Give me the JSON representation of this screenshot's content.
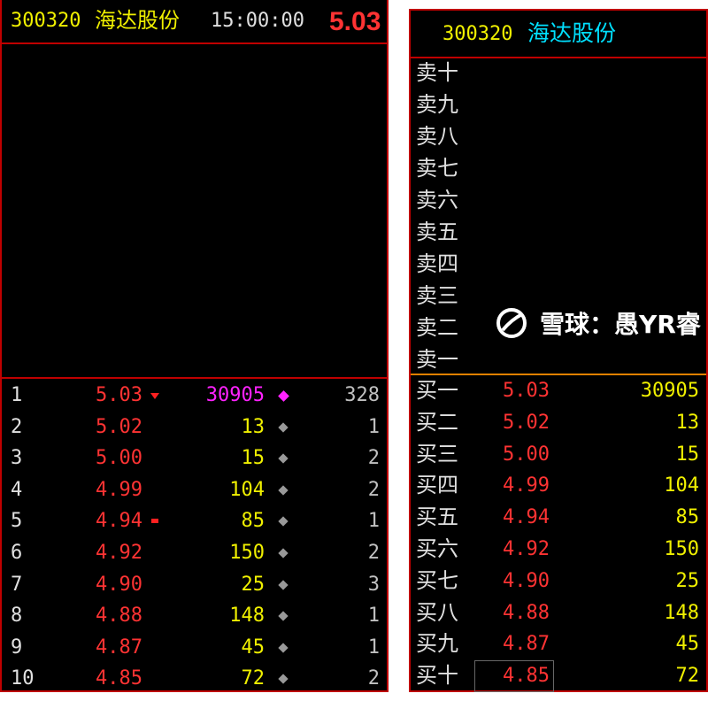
{
  "left": {
    "code": "300320",
    "name": "海达股份",
    "time": "15:00:00",
    "price": "5.03",
    "rows": [
      {
        "n": "1",
        "price": "5.03",
        "vol": "30905",
        "count": "328",
        "marker": "down-flag",
        "highlight": true
      },
      {
        "n": "2",
        "price": "5.02",
        "vol": "13",
        "count": "1"
      },
      {
        "n": "3",
        "price": "5.00",
        "vol": "15",
        "count": "2"
      },
      {
        "n": "4",
        "price": "4.99",
        "vol": "104",
        "count": "2"
      },
      {
        "n": "5",
        "price": "4.94",
        "vol": "85",
        "count": "1",
        "marker": "square"
      },
      {
        "n": "6",
        "price": "4.92",
        "vol": "150",
        "count": "2"
      },
      {
        "n": "7",
        "price": "4.90",
        "vol": "25",
        "count": "3"
      },
      {
        "n": "8",
        "price": "4.88",
        "vol": "148",
        "count": "1"
      },
      {
        "n": "9",
        "price": "4.87",
        "vol": "45",
        "count": "1"
      },
      {
        "n": "10",
        "price": "4.85",
        "vol": "72",
        "count": "2"
      }
    ]
  },
  "right": {
    "code": "300320",
    "name": "海达股份",
    "sell": [
      "卖十",
      "卖九",
      "卖八",
      "卖七",
      "卖六",
      "卖五",
      "卖四",
      "卖三",
      "卖二",
      "卖一"
    ],
    "buy": [
      {
        "label": "买一",
        "price": "5.03",
        "vol": "30905"
      },
      {
        "label": "买二",
        "price": "5.02",
        "vol": "13"
      },
      {
        "label": "买三",
        "price": "5.00",
        "vol": "15"
      },
      {
        "label": "买四",
        "price": "4.99",
        "vol": "104"
      },
      {
        "label": "买五",
        "price": "4.94",
        "vol": "85"
      },
      {
        "label": "买六",
        "price": "4.92",
        "vol": "150"
      },
      {
        "label": "买七",
        "price": "4.90",
        "vol": "25"
      },
      {
        "label": "买八",
        "price": "4.88",
        "vol": "148"
      },
      {
        "label": "买九",
        "price": "4.87",
        "vol": "45"
      },
      {
        "label": "买十",
        "price": "4.85",
        "vol": "72"
      }
    ]
  },
  "watermark": "雪球：愚YR睿"
}
